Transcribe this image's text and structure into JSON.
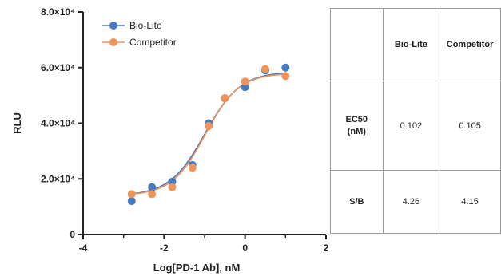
{
  "chart_data": {
    "type": "scatter",
    "xlabel": "Log[PD-1 Ab], nM",
    "ylabel": "RLU",
    "xlim": [
      -4,
      2
    ],
    "ylim": [
      0,
      80000
    ],
    "x_ticks": [
      -4,
      -2,
      0,
      2
    ],
    "x_tick_labels": [
      "-4",
      "-2",
      "0",
      "2"
    ],
    "y_ticks": [
      0,
      20000,
      40000,
      60000,
      80000
    ],
    "y_tick_labels": [
      "0",
      "2.0×10⁴",
      "4.0×10⁴",
      "6.0×10⁴",
      "8.0×10⁴"
    ],
    "legend_position": "top-left",
    "series": [
      {
        "name": "Bio-Lite",
        "color": "#4a7bbf",
        "x": [
          -2.8,
          -2.3,
          -1.8,
          -1.3,
          -0.9,
          -0.5,
          0.0,
          0.5,
          1.0
        ],
        "y": [
          12000,
          17000,
          19000,
          25000,
          40000,
          49000,
          53000,
          59000,
          60000
        ],
        "fit": {
          "bottom": 14000,
          "top": 58500,
          "log_ec50": -0.99,
          "hill": 1.0
        }
      },
      {
        "name": "Competitor",
        "color": "#f0935a",
        "x": [
          -2.8,
          -2.3,
          -1.8,
          -1.3,
          -0.9,
          -0.5,
          0.0,
          0.5,
          1.0
        ],
        "y": [
          14500,
          14500,
          17000,
          24000,
          39000,
          49000,
          55000,
          59500,
          57000
        ],
        "fit": {
          "bottom": 14000,
          "top": 58000,
          "log_ec50": -0.98,
          "hill": 1.05
        }
      }
    ]
  },
  "table": {
    "headers": [
      "",
      "Bio-Lite",
      "Competitor"
    ],
    "rows": [
      {
        "label_line1": "EC50",
        "label_line2": "(nM)",
        "values": [
          "0.102",
          "0.105"
        ]
      },
      {
        "label_line1": "S/B",
        "label_line2": "",
        "values": [
          "4.26",
          "4.15"
        ]
      }
    ]
  }
}
